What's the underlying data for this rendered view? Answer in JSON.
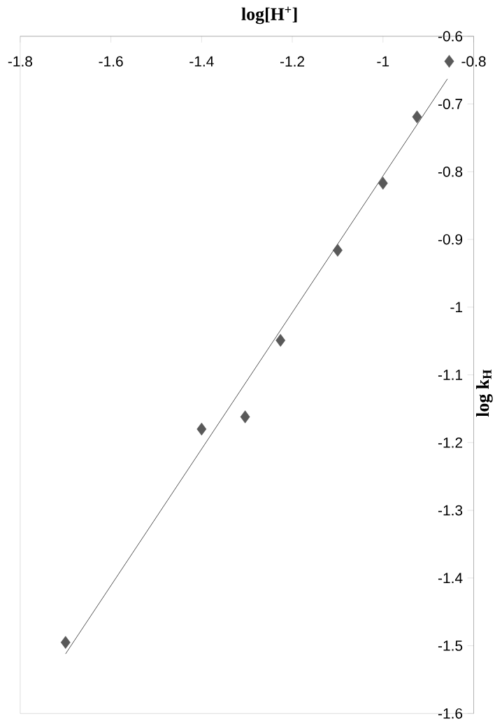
{
  "chart_data": {
    "type": "scatter",
    "xlabel": "log[H$^{+}$]",
    "ylabel": "log k$_{H}$",
    "xlim": [
      -1.8,
      -0.8
    ],
    "ylim": [
      -1.6,
      -0.6
    ],
    "xticks": [
      -1.8,
      -1.6,
      -1.4,
      -1.2,
      -1,
      -0.8
    ],
    "yticks": [
      -1.6,
      -1.5,
      -1.4,
      -1.3,
      -1.2,
      -1.1,
      -1,
      -0.9,
      -0.8,
      -0.7,
      -0.6
    ],
    "grid": false,
    "series": [
      {
        "marker": "diamond",
        "color": "#595959",
        "x": [
          -1.7,
          -1.4,
          -1.304,
          -1.226,
          -1.1,
          -1.0,
          -0.925,
          -0.854
        ],
        "values": [
          -1.495,
          -1.18,
          -1.162,
          -1.049,
          -0.916,
          -0.817,
          -0.719,
          -0.637
        ]
      },
      {
        "type": "line",
        "marker": "none",
        "line_style": "solid",
        "color": "#404040",
        "x": [
          -1.7,
          -0.858
        ],
        "values": [
          -1.512,
          -0.663
        ]
      }
    ]
  }
}
